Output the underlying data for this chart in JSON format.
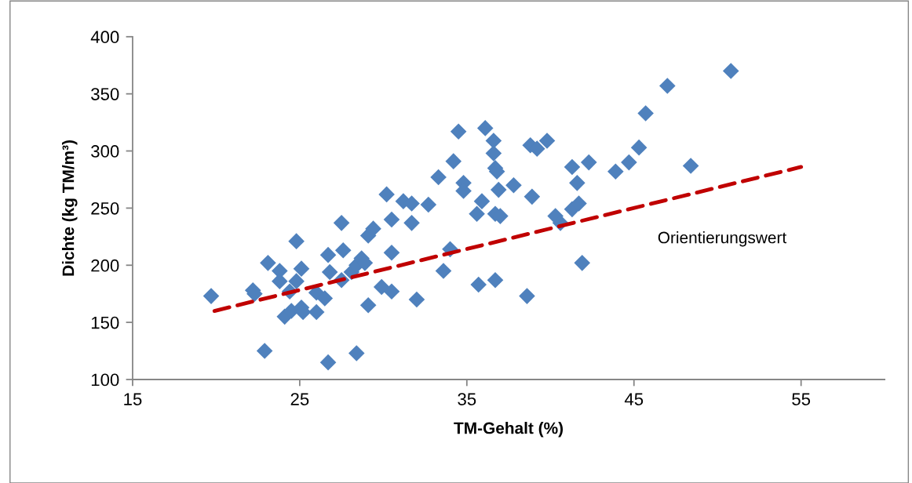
{
  "chart_data": {
    "type": "scatter",
    "xlabel": "TM-Gehalt (%)",
    "ylabel": "Dichte (kg TM/m³)",
    "xlim": [
      15,
      60
    ],
    "xticks": [
      15,
      25,
      35,
      45,
      55
    ],
    "ylim": [
      100,
      400
    ],
    "yticks": [
      100,
      150,
      200,
      250,
      300,
      350,
      400
    ],
    "grid": false,
    "legend": false,
    "marker": "diamond",
    "series": [
      {
        "color": "#4f81bd",
        "x": [
          19.7,
          22.2,
          22.3,
          22.9,
          23.1,
          23.8,
          23.8,
          24.1,
          24.5,
          24.4,
          24.8,
          24.8,
          25.1,
          25.1,
          25.2,
          26.0,
          26.0,
          26.5,
          26.7,
          26.7,
          26.8,
          27.5,
          27.6,
          27.5,
          28.1,
          28.4,
          28.4,
          28.7,
          28.9,
          29.1,
          29.1,
          29.4,
          29.9,
          30.2,
          30.5,
          30.5,
          30.5,
          31.2,
          31.7,
          31.7,
          32.0,
          32.7,
          33.3,
          33.6,
          34.0,
          34.2,
          34.5,
          34.8,
          34.8,
          36.1,
          36.6,
          36.6,
          36.7,
          36.8,
          35.9,
          35.6,
          36.7,
          37.0,
          36.9,
          37.8,
          35.7,
          36.7,
          38.6,
          38.9,
          38.8,
          39.2,
          39.8,
          40.3,
          40.6,
          41.3,
          41.6,
          41.3,
          41.7,
          41.9,
          42.3,
          43.9,
          44.7,
          45.3,
          45.7,
          48.4,
          47.0,
          50.8
        ],
        "values": [
          173,
          178,
          175,
          125,
          202,
          195,
          186,
          155,
          160,
          177,
          221,
          186,
          197,
          163,
          159,
          159,
          176,
          171,
          115,
          209,
          194,
          237,
          213,
          187,
          194,
          123,
          200,
          206,
          202,
          165,
          226,
          232,
          181,
          262,
          240,
          211,
          177,
          256,
          254,
          237,
          170,
          253,
          277,
          195,
          214,
          291,
          317,
          272,
          265,
          320,
          309,
          298,
          285,
          282,
          256,
          245,
          245,
          243,
          266,
          270,
          183,
          187,
          173,
          260,
          305,
          302,
          309,
          243,
          237,
          286,
          272,
          249,
          254,
          202,
          290,
          282,
          290,
          303,
          333,
          287,
          357,
          370
        ]
      },
      {
        "type": "line",
        "name": "Orientierungswert",
        "color": "#c00000",
        "line_style": "dashed",
        "marker": "none",
        "x": [
          19.9,
          55.0
        ],
        "values": [
          160,
          286
        ]
      }
    ]
  }
}
